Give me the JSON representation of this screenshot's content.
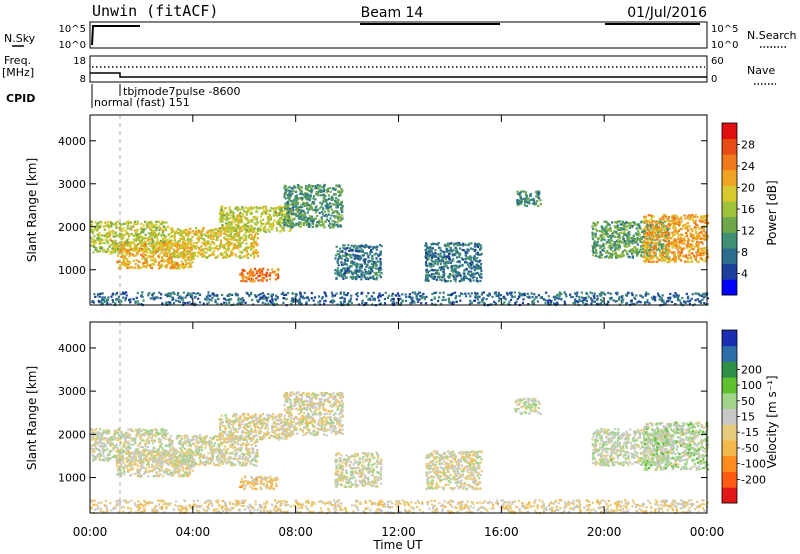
{
  "header": {
    "station": "Unwin (fitACF)",
    "beam": "Beam 14",
    "date": "01/Jul/2016"
  },
  "sky_panel": {
    "label": "N.Sky",
    "left_ticks": [
      "10^5",
      "10^0"
    ],
    "right_ticks": [
      "10^5",
      "10^0"
    ],
    "right_label": "N.Search"
  },
  "freq_panel": {
    "label_line1": "Freq.",
    "label_line2": "[MHz]",
    "left_ticks": [
      "18",
      "8"
    ],
    "right_ticks": [
      "60",
      "0"
    ],
    "right_label": "Nave",
    "cpid_label": "CPID",
    "program_1": "normal (fast) 151",
    "program_2": "tbjmode7pulse -8600"
  },
  "colors": {
    "power": [
      "#0000ff",
      "#1c3f9c",
      "#2d6e8f",
      "#3f8f73",
      "#6ea84a",
      "#9ec23a",
      "#d8c92e",
      "#f0a423",
      "#f07a1c",
      "#e84c16",
      "#e01010"
    ],
    "velocity": [
      "#e21616",
      "#ff5a14",
      "#ff8c1e",
      "#f3b84a",
      "#e6cc7a",
      "#c8c8c8",
      "#9fd48a",
      "#5fc030",
      "#2e8f47",
      "#2e6ea8",
      "#1a2fb0"
    ]
  },
  "chart_data": [
    {
      "type": "heatmap",
      "name": "power",
      "xlabel": "",
      "ylabel": "Slant Range [km]",
      "x_ticks": [
        "00:00",
        "04:00",
        "08:00",
        "12:00",
        "16:00",
        "20:00",
        "00:00"
      ],
      "y_ticks": [
        "1000",
        "2000",
        "3000",
        "4000"
      ],
      "ylim": [
        180,
        4600
      ],
      "colorbar_label": "Power [dB]",
      "colorbar_ticks": [
        "4",
        "8",
        "12",
        "16",
        "20",
        "24",
        "28"
      ],
      "colorbar_range": [
        0,
        32
      ],
      "regions": [
        {
          "t0": 0.0,
          "t1": 3.0,
          "r0": 1400,
          "r1": 2150,
          "level": 17
        },
        {
          "t0": 1.0,
          "t1": 4.0,
          "r0": 1050,
          "r1": 1650,
          "level": 21
        },
        {
          "t0": 3.0,
          "t1": 6.5,
          "r0": 1300,
          "r1": 2000,
          "level": 19
        },
        {
          "t0": 5.0,
          "t1": 7.8,
          "r0": 1900,
          "r1": 2500,
          "level": 17
        },
        {
          "t0": 5.8,
          "t1": 7.3,
          "r0": 750,
          "r1": 1050,
          "level": 25
        },
        {
          "t0": 7.5,
          "t1": 9.8,
          "r0": 2000,
          "r1": 3000,
          "level": 11
        },
        {
          "t0": 9.5,
          "t1": 11.3,
          "r0": 800,
          "r1": 1600,
          "level": 8
        },
        {
          "t0": 13.0,
          "t1": 15.2,
          "r0": 750,
          "r1": 1650,
          "level": 8
        },
        {
          "t0": 16.5,
          "t1": 17.5,
          "r0": 2500,
          "r1": 2850,
          "level": 10
        },
        {
          "t0": 19.5,
          "t1": 22.5,
          "r0": 1300,
          "r1": 2150,
          "level": 12
        },
        {
          "t0": 21.5,
          "t1": 24.0,
          "r0": 1200,
          "r1": 2300,
          "level": 22
        },
        {
          "t0": 0.0,
          "t1": 24.0,
          "r0": 200,
          "r1": 500,
          "level": 7
        }
      ]
    },
    {
      "type": "heatmap",
      "name": "velocity",
      "xlabel": "Time UT",
      "ylabel": "Slant Range [km]",
      "x_ticks": [
        "00:00",
        "04:00",
        "08:00",
        "12:00",
        "16:00",
        "20:00",
        "00:00"
      ],
      "y_ticks": [
        "1000",
        "2000",
        "3000",
        "4000"
      ],
      "ylim": [
        180,
        4600
      ],
      "colorbar_label": "Velocity [m s⁻¹]",
      "colorbar_ticks": [
        "-200",
        "-100",
        "-50",
        "-15",
        "15",
        "50",
        "100",
        "200"
      ],
      "colorbar_range": [
        -250,
        250
      ],
      "regions": [
        {
          "t0": 0.0,
          "t1": 3.0,
          "r0": 1400,
          "r1": 2150,
          "level": 0
        },
        {
          "t0": 1.0,
          "t1": 4.0,
          "r0": 1050,
          "r1": 1650,
          "level": -20
        },
        {
          "t0": 3.0,
          "t1": 6.5,
          "r0": 1300,
          "r1": 2000,
          "level": -10
        },
        {
          "t0": 5.0,
          "t1": 7.8,
          "r0": 1900,
          "r1": 2500,
          "level": -25
        },
        {
          "t0": 5.8,
          "t1": 7.3,
          "r0": 750,
          "r1": 1050,
          "level": -60
        },
        {
          "t0": 7.5,
          "t1": 9.8,
          "r0": 2000,
          "r1": 3000,
          "level": -20
        },
        {
          "t0": 9.5,
          "t1": 11.3,
          "r0": 800,
          "r1": 1600,
          "level": -10
        },
        {
          "t0": 13.0,
          "t1": 15.2,
          "r0": 750,
          "r1": 1650,
          "level": -15
        },
        {
          "t0": 16.5,
          "t1": 17.5,
          "r0": 2500,
          "r1": 2850,
          "level": 0
        },
        {
          "t0": 19.5,
          "t1": 22.5,
          "r0": 1300,
          "r1": 2150,
          "level": 10
        },
        {
          "t0": 21.5,
          "t1": 24.0,
          "r0": 1200,
          "r1": 2300,
          "level": 25
        },
        {
          "t0": 0.0,
          "t1": 24.0,
          "r0": 200,
          "r1": 500,
          "level": -40
        }
      ]
    }
  ]
}
